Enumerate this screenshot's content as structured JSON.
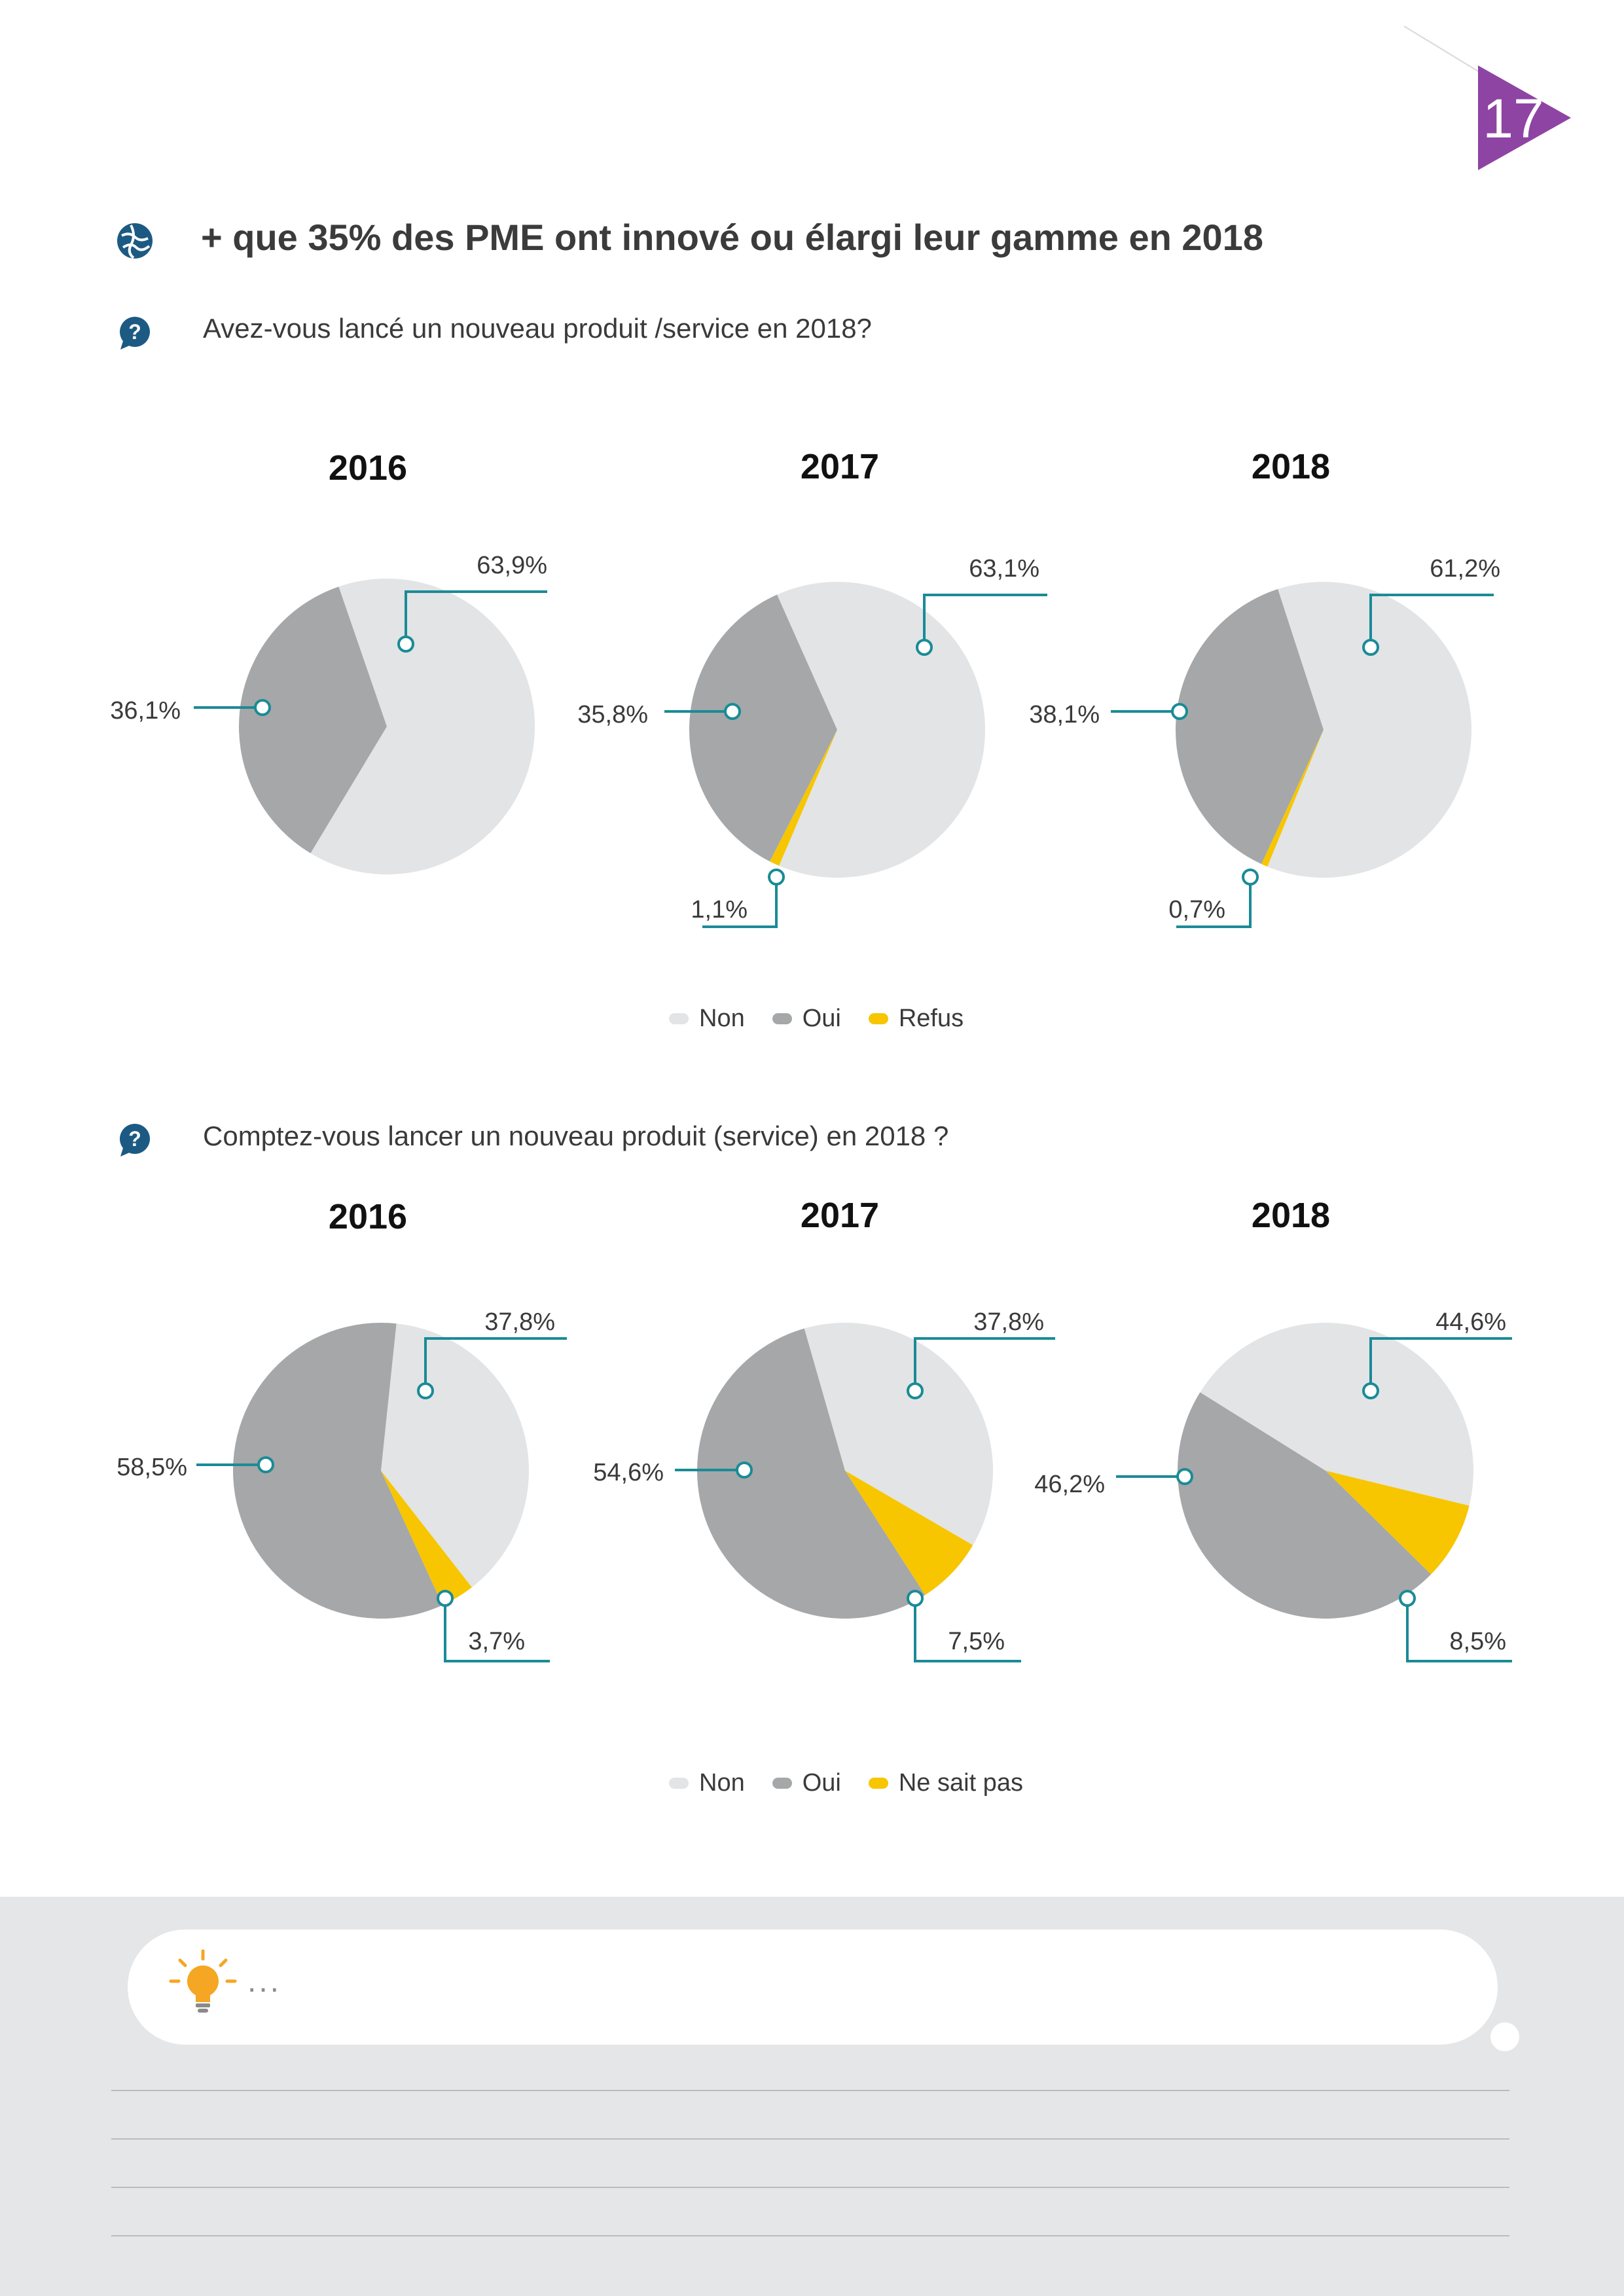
{
  "page": {
    "number": "17"
  },
  "headline": "+ que 35% des PME ont innové ou élargi leur gamme en 2018",
  "colors": {
    "non": "#e2e4e6",
    "oui": "#a5a7a9",
    "third": "#f7c600",
    "leader": "#1a8b96",
    "accent_purple": "#8e44a3",
    "icon_blue": "#1c5a83",
    "bulb": "#f5a623"
  },
  "questions": [
    {
      "text": "Avez-vous lancé un nouveau produit /service en 2018?",
      "legend": [
        "Non",
        "Oui",
        "Refus"
      ]
    },
    {
      "text": "Comptez-vous lancer un nouveau produit (service) en 2018 ?",
      "legend": [
        "Non",
        "Oui",
        "Ne sait pas"
      ]
    }
  ],
  "chart_data": [
    {
      "type": "pie",
      "title": "2016",
      "categories": [
        "Non",
        "Oui",
        "Refus"
      ],
      "values": [
        63.9,
        36.1,
        0
      ],
      "labels": [
        "63,9%",
        "36,1%",
        ""
      ]
    },
    {
      "type": "pie",
      "title": "2017",
      "categories": [
        "Non",
        "Oui",
        "Refus"
      ],
      "values": [
        63.1,
        35.8,
        1.1
      ],
      "labels": [
        "63,1%",
        "35,8%",
        "1,1%"
      ]
    },
    {
      "type": "pie",
      "title": "2018",
      "categories": [
        "Non",
        "Oui",
        "Refus"
      ],
      "values": [
        61.2,
        38.1,
        0.7
      ],
      "labels": [
        "61,2%",
        "38,1%",
        "0,7%"
      ]
    },
    {
      "type": "pie",
      "title": "2016",
      "categories": [
        "Non",
        "Oui",
        "Ne sait pas"
      ],
      "values": [
        37.8,
        58.5,
        3.7
      ],
      "labels": [
        "37,8%",
        "58,5%",
        "3,7%"
      ]
    },
    {
      "type": "pie",
      "title": "2017",
      "categories": [
        "Non",
        "Oui",
        "Ne sait pas"
      ],
      "values": [
        37.8,
        54.6,
        7.5
      ],
      "labels": [
        "37,8%",
        "54,6%",
        "7,5%"
      ]
    },
    {
      "type": "pie",
      "title": "2018",
      "categories": [
        "Non",
        "Oui",
        "Ne sait pas"
      ],
      "values": [
        44.6,
        46.2,
        8.5
      ],
      "labels": [
        "44,6%",
        "46,2%",
        "8,5%"
      ]
    }
  ],
  "footer": {
    "note_placeholder": "..."
  }
}
